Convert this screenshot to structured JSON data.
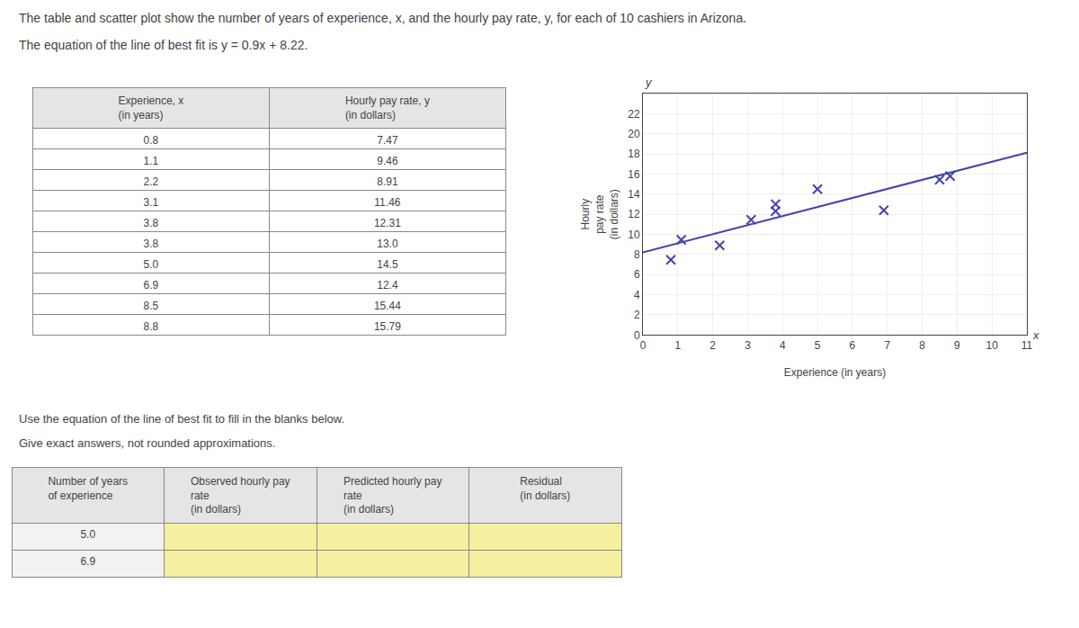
{
  "chart_data": {
    "type": "scatter",
    "title": "The table and scatter plot show the number of years of experience, x, and the hourly pay rate, y, for each of 10 cashiers in Arizona.",
    "subtitle": "The equation of the line of best fit is y = 0.9x + 8.22.",
    "series": [
      {
        "type": "scatter",
        "marker": "x",
        "color": "#4444aa",
        "x": [
          0.8,
          1.1,
          2.2,
          3.1,
          3.8,
          3.8,
          5.0,
          6.9,
          8.5,
          8.8
        ],
        "values": [
          7.47,
          9.46,
          8.91,
          11.46,
          12.31,
          13.0,
          14.5,
          12.4,
          15.44,
          15.79
        ]
      },
      {
        "type": "line",
        "color": "#4444aa",
        "x": [
          0,
          11
        ],
        "values": [
          8.22,
          18.12
        ]
      }
    ],
    "xlabel": "Experience (in years)",
    "ylabel": "Hourly\npay rate\n(in dollars)",
    "annotations": [
      "y",
      "x"
    ],
    "xlim": [
      0,
      11
    ],
    "xticks": [
      0,
      1,
      2,
      3,
      4,
      5,
      6,
      7,
      8,
      9,
      10,
      11
    ],
    "ylim": [
      0,
      24
    ],
    "yticks": [
      0,
      2,
      4,
      6,
      8,
      10,
      12,
      14,
      16,
      18,
      20,
      22
    ],
    "grid": true,
    "table": {
      "headers": [
        "Experience, x\n(in years)",
        "Hourly pay rate, y\n(in dollars)"
      ],
      "rows": [
        [
          "0.8",
          "7.47"
        ],
        [
          "1.1",
          "9.46"
        ],
        [
          "2.2",
          "8.91"
        ],
        [
          "3.1",
          "11.46"
        ],
        [
          "3.8",
          "12.31"
        ],
        [
          "3.8",
          "13.0"
        ],
        [
          "5.0",
          "14.5"
        ],
        [
          "6.9",
          "12.4"
        ],
        [
          "8.5",
          "15.44"
        ],
        [
          "8.8",
          "15.79"
        ]
      ]
    },
    "text": [
      "Use the equation of the line of best fit to fill in the blanks below.",
      "Give exact answers, not rounded approximations."
    ],
    "bottom_table": {
      "headers": [
        "Number of years\nof experience",
        "Observed hourly pay\nrate\n(in dollars)",
        "Predicted hourly pay\nrate\n(in dollars)",
        "Residual\n(in dollars)"
      ],
      "rows": [
        [
          "5.0",
          null,
          null,
          null
        ],
        [
          "6.9",
          null,
          null,
          null
        ]
      ],
      "color": "#f5f0a0"
    }
  }
}
